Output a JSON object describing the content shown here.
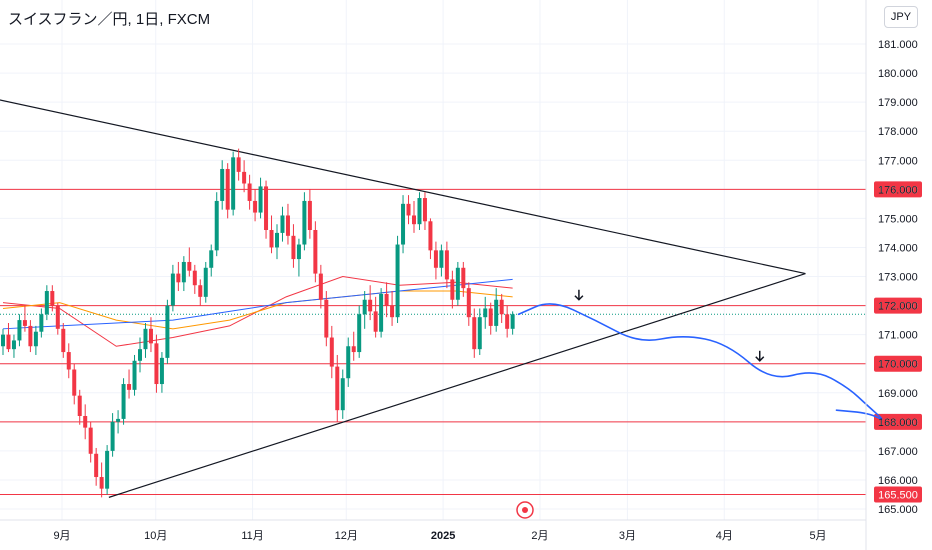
{
  "title": "スイスフラン／円, 1日, FXCM",
  "unit": "JPY",
  "chart_data": {
    "type": "candlestick",
    "symbol": "CHFJPY",
    "timeframe": "1D",
    "source": "FXCM",
    "ylim": [
      164.7,
      182.0
    ],
    "y_ticks": [
      165.0,
      166.0,
      167.0,
      168.0,
      169.0,
      170.0,
      171.0,
      172.0,
      173.0,
      174.0,
      175.0,
      176.0,
      177.0,
      178.0,
      179.0,
      180.0,
      181.0
    ],
    "y_tick_labels": [
      "165.000",
      "166.000",
      "167.000",
      "168.000",
      "169.000",
      "170.000",
      "171.000",
      "172.000",
      "173.000",
      "174.000",
      "175.000",
      "176.000",
      "177.000",
      "178.000",
      "179.000",
      "180.000",
      "181.000"
    ],
    "x_ticks": [
      {
        "label": "9月",
        "date": "2024-09-01"
      },
      {
        "label": "10月",
        "date": "2024-10-01"
      },
      {
        "label": "11月",
        "date": "2024-11-01"
      },
      {
        "label": "12月",
        "date": "2024-12-01"
      },
      {
        "label": "2025",
        "date": "2025-01-01",
        "bold": true
      },
      {
        "label": "2月",
        "date": "2025-02-01"
      },
      {
        "label": "3月",
        "date": "2025-03-01"
      },
      {
        "label": "4月",
        "date": "2025-04-01"
      },
      {
        "label": "5月",
        "date": "2025-05-01"
      }
    ],
    "horizontal_levels": [
      {
        "value": 176.0,
        "label": "176.000",
        "color": "#f23645"
      },
      {
        "value": 172.0,
        "label": "172.000",
        "color": "#f23645"
      },
      {
        "value": 170.0,
        "label": "170.000",
        "color": "#f23645"
      },
      {
        "value": 168.0,
        "label": "168.000",
        "color": "#f23645"
      },
      {
        "value": 165.5,
        "label": "165.500",
        "color": "#f23645"
      }
    ],
    "current_price": 171.7,
    "trendlines": [
      {
        "from": {
          "date": "2024-07-29",
          "value": 179.4
        },
        "to": {
          "date": "2025-04-27",
          "value": 173.1
        },
        "color": "#131722"
      },
      {
        "from": {
          "date": "2024-09-16",
          "value": 165.4
        },
        "to": {
          "date": "2025-04-27",
          "value": 173.1
        },
        "color": "#131722"
      }
    ],
    "moving_averages": [
      {
        "color": "#f23645",
        "points": [
          [
            0,
            172.1
          ],
          [
            20,
            171.9
          ],
          [
            40,
            170.6
          ],
          [
            60,
            170.9
          ],
          [
            80,
            171.3
          ],
          [
            100,
            172.3
          ],
          [
            120,
            173.0
          ],
          [
            140,
            172.7
          ],
          [
            160,
            172.8
          ],
          [
            180,
            172.6
          ]
        ]
      },
      {
        "color": "#ff9800",
        "points": [
          [
            0,
            171.9
          ],
          [
            20,
            172.1
          ],
          [
            40,
            171.5
          ],
          [
            60,
            171.2
          ],
          [
            80,
            171.5
          ],
          [
            100,
            172.1
          ],
          [
            120,
            172.3
          ],
          [
            140,
            172.5
          ],
          [
            160,
            172.5
          ],
          [
            180,
            172.3
          ]
        ]
      },
      {
        "color": "#2962ff",
        "points": [
          [
            0,
            171.2
          ],
          [
            20,
            171.3
          ],
          [
            40,
            171.4
          ],
          [
            60,
            171.5
          ],
          [
            80,
            171.8
          ],
          [
            100,
            172.1
          ],
          [
            120,
            172.3
          ],
          [
            140,
            172.5
          ],
          [
            160,
            172.7
          ],
          [
            180,
            172.9
          ]
        ]
      }
    ],
    "candles": [
      [
        170.6,
        171.2,
        170.3,
        171.0
      ],
      [
        171.0,
        171.4,
        170.4,
        170.5
      ],
      [
        170.5,
        171.0,
        170.2,
        170.8
      ],
      [
        170.8,
        171.7,
        170.6,
        171.5
      ],
      [
        171.5,
        172.0,
        171.1,
        171.3
      ],
      [
        171.3,
        171.5,
        170.4,
        170.6
      ],
      [
        170.6,
        171.3,
        170.3,
        171.1
      ],
      [
        171.1,
        171.9,
        170.9,
        171.7
      ],
      [
        171.7,
        172.7,
        171.5,
        172.5
      ],
      [
        172.5,
        172.7,
        171.8,
        172.0
      ],
      [
        172.0,
        172.1,
        171.0,
        171.2
      ],
      [
        171.2,
        171.4,
        170.2,
        170.4
      ],
      [
        170.4,
        170.7,
        169.5,
        169.8
      ],
      [
        169.8,
        170.0,
        168.6,
        168.9
      ],
      [
        168.9,
        169.1,
        167.9,
        168.2
      ],
      [
        168.2,
        168.6,
        167.4,
        167.8
      ],
      [
        167.8,
        168.0,
        166.6,
        166.9
      ],
      [
        166.9,
        167.1,
        165.8,
        166.1
      ],
      [
        166.1,
        166.6,
        165.4,
        165.7
      ],
      [
        165.7,
        167.2,
        165.5,
        167.0
      ],
      [
        167.0,
        168.3,
        166.8,
        168.0
      ],
      [
        168.0,
        168.4,
        167.6,
        168.1
      ],
      [
        168.1,
        169.5,
        167.9,
        169.3
      ],
      [
        169.3,
        169.8,
        168.8,
        169.1
      ],
      [
        169.1,
        170.3,
        168.9,
        170.1
      ],
      [
        170.1,
        170.9,
        169.7,
        170.5
      ],
      [
        170.5,
        171.4,
        170.2,
        171.2
      ],
      [
        171.2,
        171.6,
        170.4,
        170.7
      ],
      [
        170.7,
        171.0,
        169.0,
        169.3
      ],
      [
        169.3,
        170.4,
        169.0,
        170.2
      ],
      [
        170.2,
        172.2,
        170.0,
        172.0
      ],
      [
        172.0,
        173.4,
        171.8,
        173.1
      ],
      [
        173.1,
        173.5,
        172.5,
        172.8
      ],
      [
        172.8,
        173.7,
        172.5,
        173.5
      ],
      [
        173.5,
        174.0,
        173.0,
        173.2
      ],
      [
        173.2,
        173.4,
        172.4,
        172.7
      ],
      [
        172.7,
        172.9,
        172.0,
        172.3
      ],
      [
        172.3,
        173.5,
        172.1,
        173.3
      ],
      [
        173.3,
        174.1,
        173.0,
        173.9
      ],
      [
        173.9,
        175.9,
        173.7,
        175.6
      ],
      [
        175.6,
        177.0,
        175.3,
        176.7
      ],
      [
        176.7,
        176.9,
        175.0,
        175.3
      ],
      [
        175.3,
        177.3,
        175.1,
        177.1
      ],
      [
        177.1,
        177.4,
        176.3,
        176.6
      ],
      [
        176.6,
        177.0,
        175.9,
        176.2
      ],
      [
        176.2,
        176.5,
        175.3,
        175.6
      ],
      [
        175.6,
        176.0,
        174.9,
        175.2
      ],
      [
        175.2,
        176.4,
        175.0,
        176.1
      ],
      [
        176.1,
        176.3,
        174.3,
        174.6
      ],
      [
        174.6,
        175.1,
        173.8,
        174.0
      ],
      [
        174.0,
        174.8,
        173.6,
        174.5
      ],
      [
        174.5,
        175.4,
        174.2,
        175.1
      ],
      [
        175.1,
        175.5,
        174.1,
        174.4
      ],
      [
        174.4,
        174.8,
        173.3,
        173.6
      ],
      [
        173.6,
        174.3,
        173.0,
        174.1
      ],
      [
        174.1,
        175.9,
        173.9,
        175.6
      ],
      [
        175.6,
        176.0,
        174.3,
        174.6
      ],
      [
        174.6,
        174.9,
        172.8,
        173.1
      ],
      [
        173.1,
        173.4,
        171.9,
        172.2
      ],
      [
        172.2,
        172.5,
        170.6,
        170.9
      ],
      [
        170.9,
        171.3,
        169.5,
        169.9
      ],
      [
        169.9,
        170.3,
        168.0,
        168.4
      ],
      [
        168.4,
        169.8,
        168.1,
        169.5
      ],
      [
        169.5,
        170.9,
        169.2,
        170.6
      ],
      [
        170.6,
        171.1,
        170.1,
        170.4
      ],
      [
        170.4,
        172.0,
        170.2,
        171.7
      ],
      [
        171.7,
        172.5,
        171.2,
        172.2
      ],
      [
        172.2,
        172.7,
        171.5,
        171.8
      ],
      [
        171.8,
        172.3,
        170.9,
        171.1
      ],
      [
        171.1,
        172.6,
        170.9,
        172.4
      ],
      [
        172.4,
        172.8,
        171.6,
        172.0
      ],
      [
        172.0,
        172.5,
        171.3,
        171.6
      ],
      [
        171.6,
        174.4,
        171.4,
        174.1
      ],
      [
        174.1,
        175.8,
        173.8,
        175.5
      ],
      [
        175.5,
        175.8,
        174.8,
        175.1
      ],
      [
        175.1,
        175.6,
        174.5,
        174.8
      ],
      [
        174.8,
        175.9,
        174.6,
        175.7
      ],
      [
        175.7,
        175.9,
        174.6,
        174.9
      ],
      [
        174.9,
        175.0,
        173.6,
        173.9
      ],
      [
        173.9,
        174.2,
        172.9,
        173.3
      ],
      [
        173.3,
        174.1,
        173.0,
        173.9
      ],
      [
        173.9,
        174.2,
        172.6,
        172.9
      ],
      [
        172.9,
        173.2,
        171.9,
        172.2
      ],
      [
        172.2,
        173.5,
        172.0,
        173.3
      ],
      [
        173.3,
        173.5,
        172.3,
        172.6
      ],
      [
        172.6,
        172.8,
        171.3,
        171.6
      ],
      [
        171.6,
        171.9,
        170.2,
        170.5
      ],
      [
        170.5,
        171.9,
        170.3,
        171.6
      ],
      [
        171.6,
        172.3,
        171.2,
        171.9
      ],
      [
        171.9,
        172.1,
        171.0,
        171.3
      ],
      [
        171.3,
        172.6,
        171.1,
        172.2
      ],
      [
        172.2,
        172.4,
        171.4,
        171.7
      ],
      [
        171.7,
        172.0,
        170.9,
        171.2
      ],
      [
        171.2,
        171.8,
        171.0,
        171.7
      ]
    ]
  },
  "annotations": {
    "forecast_path": [
      [
        0,
        171.7
      ],
      [
        6,
        172.2
      ],
      [
        14,
        171.5
      ],
      [
        22,
        170.7
      ],
      [
        30,
        171.0
      ],
      [
        38,
        170.7
      ],
      [
        46,
        169.4
      ],
      [
        54,
        169.8
      ],
      [
        60,
        169.2
      ],
      [
        64,
        168.5
      ],
      [
        67,
        168.0
      ],
      [
        64,
        168.3
      ],
      [
        58,
        168.4
      ]
    ],
    "arrows": [
      {
        "index": 11,
        "value": 172.2
      },
      {
        "index": 44,
        "value": 170.1
      }
    ]
  }
}
